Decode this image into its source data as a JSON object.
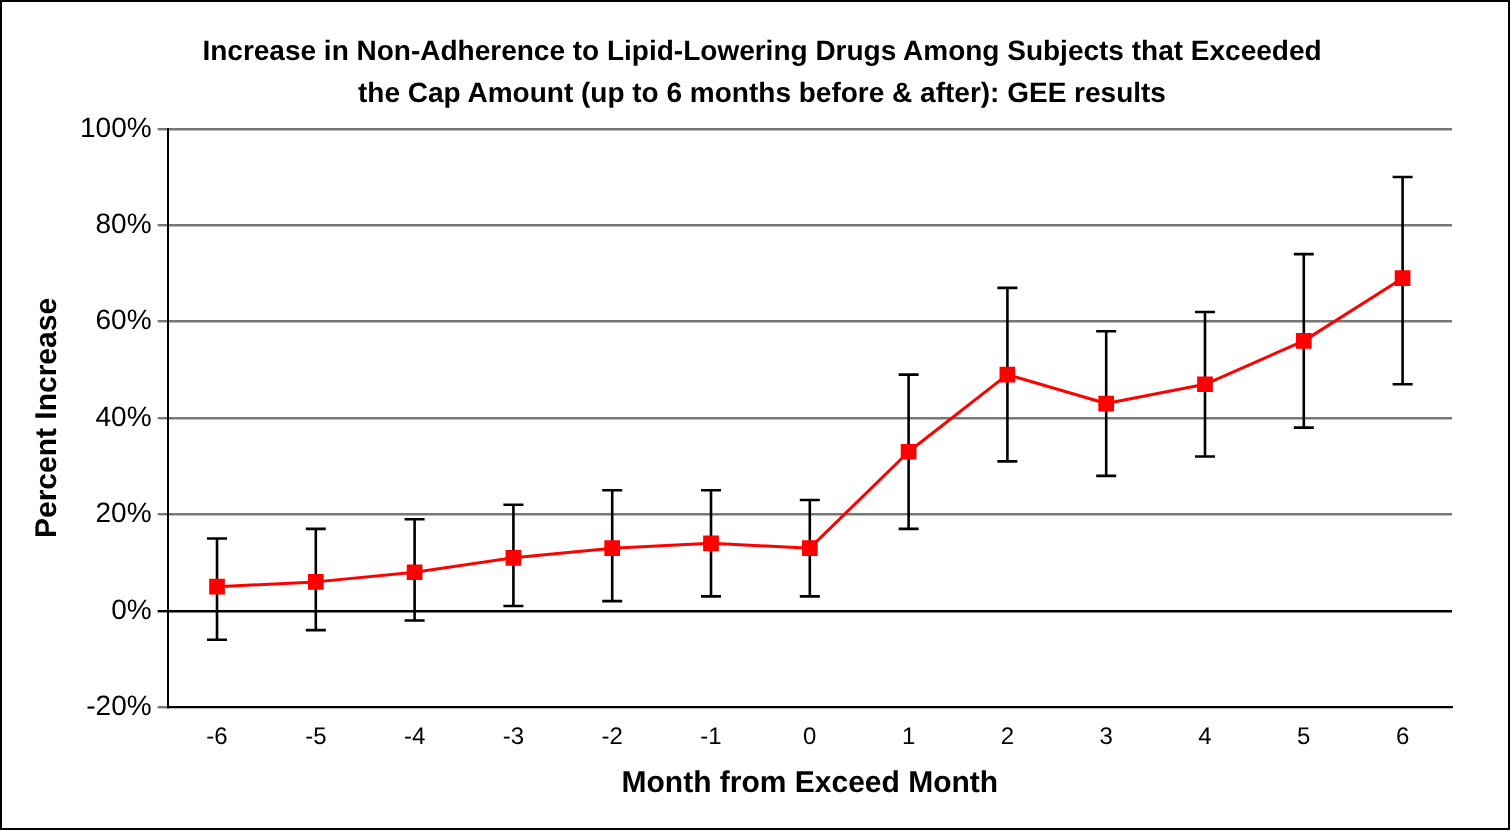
{
  "chart_data": {
    "type": "line",
    "title": "Increase in Non-Adherence to Lipid-Lowering Drugs Among Subjects that Exceeded the Cap Amount (up to 6 months before & after): GEE results",
    "xlabel": "Month from Exceed Month",
    "ylabel": "Percent Increase",
    "categories": [
      "-6",
      "-5",
      "-4",
      "-3",
      "-2",
      "-1",
      "0",
      "1",
      "2",
      "3",
      "4",
      "5",
      "6"
    ],
    "series": [
      {
        "color": "#ff0000",
        "values": [
          5,
          6,
          8,
          11,
          13,
          14,
          13,
          33,
          49,
          43,
          47,
          56,
          69
        ],
        "errors": [
          [
            -6,
            15
          ],
          [
            -4,
            17
          ],
          [
            -2,
            19
          ],
          [
            1,
            22
          ],
          [
            2,
            25
          ],
          [
            3,
            25
          ],
          [
            3,
            23
          ],
          [
            17,
            49
          ],
          [
            31,
            67
          ],
          [
            28,
            58
          ],
          [
            32,
            62
          ],
          [
            38,
            74
          ],
          [
            47,
            90
          ]
        ]
      }
    ],
    "ylim": [
      -20,
      100
    ],
    "yticks": [
      {
        "value": -20,
        "label": "-20%"
      },
      {
        "value": 0,
        "label": "0%"
      },
      {
        "value": 20,
        "label": "20%"
      },
      {
        "value": 40,
        "label": "40%"
      },
      {
        "value": 60,
        "label": "60%"
      },
      {
        "value": 80,
        "label": "80%"
      },
      {
        "value": 100,
        "label": "100%"
      }
    ],
    "grid": "y",
    "marker": "square",
    "line_style": "solid",
    "legend": false
  }
}
